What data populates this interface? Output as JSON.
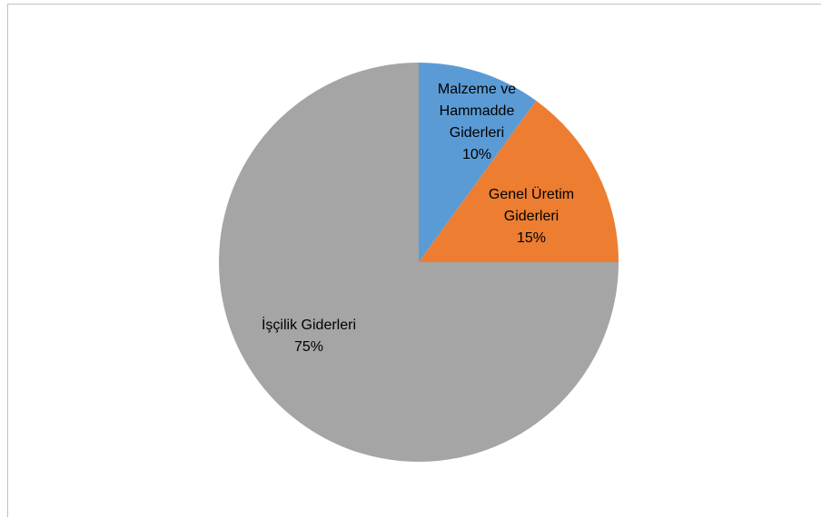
{
  "chart_data": {
    "type": "pie",
    "title": "",
    "start_angle_deg": 0,
    "direction": "clockwise",
    "slices": [
      {
        "label_lines": [
          "Malzeme ve",
          "Hammadde",
          "Giderleri"
        ],
        "percent_label": "10%",
        "value": 10,
        "color": "#5b9bd5"
      },
      {
        "label_lines": [
          "Genel Üretim",
          "Giderleri"
        ],
        "percent_label": "15%",
        "value": 15,
        "color": "#ed7d31"
      },
      {
        "label_lines": [
          "İşçilik Giderleri"
        ],
        "percent_label": "75%",
        "value": 75,
        "color": "#a5a5a5"
      }
    ]
  }
}
